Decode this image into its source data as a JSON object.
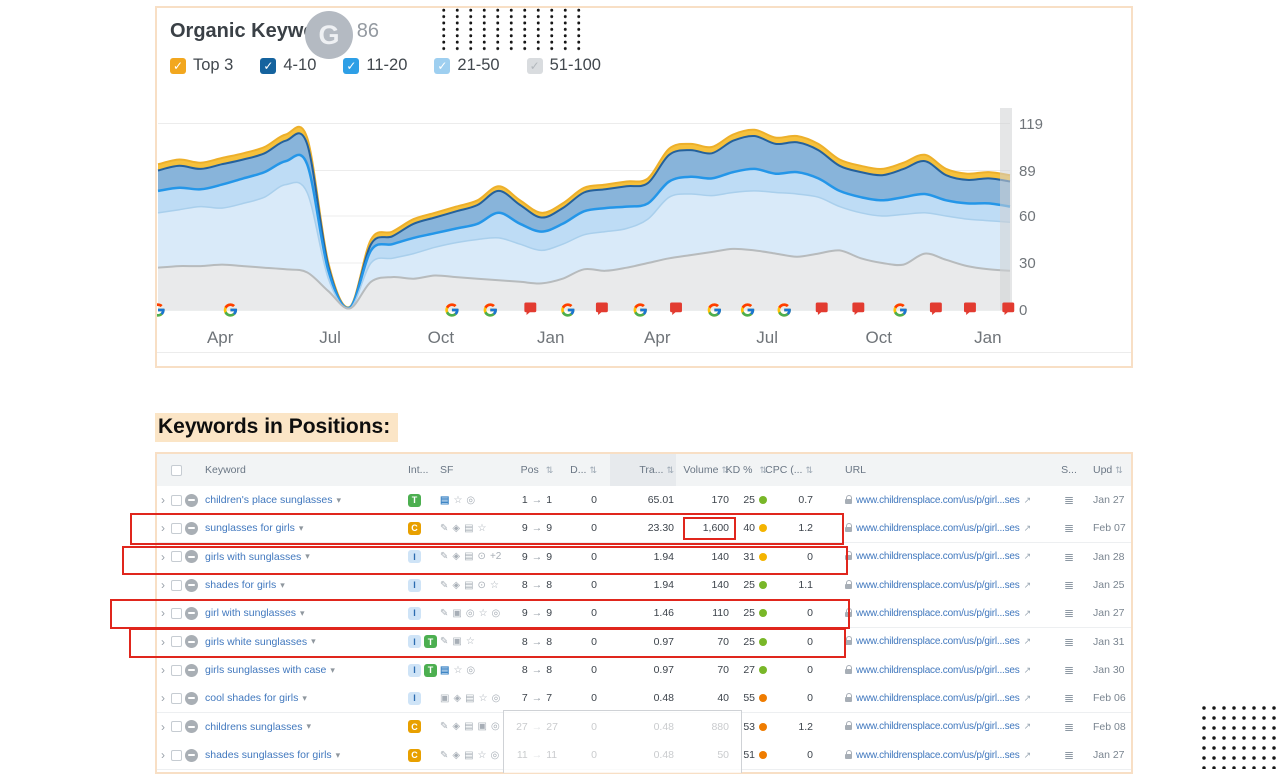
{
  "glyphs": {
    "chevron": "›",
    "dropdown": "▾",
    "pos_arrow": "→",
    "sort": "⇅",
    "serp": "≣",
    "ext": "↗",
    "check": "✓",
    "refresh_g": "G"
  },
  "colors": {
    "panel_border": "#f8dfc5",
    "heading_highlight": "#fbe5c6",
    "annotation_red": "#e0261d",
    "kd": {
      "green": "#79b728",
      "amber": "#f4b400",
      "orange": "#ef7c00"
    },
    "intent": {
      "T": {
        "bg": "#4caf50",
        "fg": "#ffffff"
      },
      "C": {
        "bg": "#e8a000",
        "fg": "#ffffff"
      },
      "I": {
        "bg": "#cfe4f7",
        "fg": "#2b6cb0"
      }
    }
  },
  "chart_panel": {
    "title": "Organic Keywords",
    "count": "86",
    "legend": [
      {
        "label": "Top 3",
        "color": "#f2a71f",
        "check": "#ffffff"
      },
      {
        "label": "4-10",
        "color": "#15639e",
        "check": "#ffffff"
      },
      {
        "label": "11-20",
        "color": "#2e9fe6",
        "check": "#ffffff"
      },
      {
        "label": "21-50",
        "color": "#9ecff0",
        "check": "#ffffff"
      },
      {
        "label": "51-100",
        "color": "#d9dcdf",
        "check": "#b2b7bc"
      }
    ]
  },
  "chart_data": {
    "type": "area",
    "stacked": true,
    "title": "Organic Keywords trend",
    "total_keywords": 86,
    "ylim": [
      0,
      119
    ],
    "y_ticks": [
      0,
      30,
      60,
      89,
      119
    ],
    "grid": true,
    "legend_position": "top",
    "x_labels": [
      {
        "label": "Apr",
        "pct": 7.3
      },
      {
        "label": "Jul",
        "pct": 20.2
      },
      {
        "label": "Oct",
        "pct": 33.2
      },
      {
        "label": "Jan",
        "pct": 46.1
      },
      {
        "label": "Apr",
        "pct": 58.6
      },
      {
        "label": "Jul",
        "pct": 71.5
      },
      {
        "label": "Oct",
        "pct": 84.6
      },
      {
        "label": "Jan",
        "pct": 97.4
      }
    ],
    "series_note": "values are the top boundary (cumulative keyword count) of each position band, sampled every 2.5% of the time axis",
    "series": [
      {
        "name": "Top 3",
        "stroke": "#edb02b",
        "fill": "#f6c13c",
        "width": 2,
        "values": [
          93,
          96,
          94,
          97,
          100,
          104,
          112,
          110,
          30,
          2,
          45,
          50,
          58,
          62,
          66,
          70,
          79,
          70,
          62,
          68,
          78,
          80,
          82,
          84,
          103,
          106,
          104,
          112,
          115,
          110,
          111,
          106,
          96,
          92,
          90,
          94,
          99,
          90,
          87,
          88,
          86
        ]
      },
      {
        "name": "4-10",
        "stroke": "#24619c",
        "fill": "#88b4da",
        "width": 2,
        "values": [
          89,
          92,
          90,
          93,
          96,
          100,
          108,
          106,
          28,
          1.5,
          42,
          47,
          55,
          59,
          63,
          67,
          76,
          67,
          59,
          65,
          75,
          77,
          79,
          81,
          99,
          102,
          100,
          108,
          111,
          106,
          107,
          102,
          92,
          88,
          86,
          90,
          95,
          86,
          83,
          84,
          82
        ]
      },
      {
        "name": "11-20",
        "stroke": "#2496e8",
        "fill": "#bedcf5",
        "width": 2.5,
        "values": [
          76,
          78,
          77,
          80,
          84,
          88,
          95,
          93,
          25,
          1.5,
          38,
          42,
          46,
          49,
          52,
          55,
          62,
          55,
          50,
          55,
          63,
          65,
          66,
          68,
          82,
          85,
          84,
          88,
          90,
          87,
          88,
          84,
          76,
          72,
          70,
          72,
          74,
          70,
          68,
          68,
          66
        ]
      },
      {
        "name": "21-50",
        "stroke": "#a9cfec",
        "fill": "#d9eaf9",
        "width": 1.5,
        "values": [
          62,
          64,
          66,
          65,
          68,
          72,
          80,
          75,
          20,
          1,
          30,
          33,
          36,
          40,
          43,
          45,
          46,
          42,
          38,
          42,
          48,
          50,
          52,
          58,
          72,
          74,
          73,
          75,
          76,
          75,
          74,
          72,
          66,
          62,
          60,
          61,
          62,
          60,
          58,
          57,
          56
        ]
      },
      {
        "name": "51-100",
        "stroke": "#b7bbbd",
        "fill": "#e9eaeb",
        "width": 2,
        "values": [
          27,
          28,
          28,
          29,
          28,
          27,
          26,
          24,
          12,
          1,
          18,
          21,
          20,
          22,
          21,
          20,
          19,
          18,
          17,
          20,
          26,
          25,
          27,
          30,
          33,
          35,
          37,
          39,
          38,
          36,
          34,
          36,
          38,
          33,
          30,
          29,
          36,
          32,
          28,
          26,
          25
        ]
      }
    ],
    "markers": [
      {
        "pct": 0,
        "type": "google-update"
      },
      {
        "pct": 8.5,
        "type": "google-update"
      },
      {
        "pct": 34.5,
        "type": "google-update"
      },
      {
        "pct": 39,
        "type": "google-update"
      },
      {
        "pct": 43.7,
        "type": "note"
      },
      {
        "pct": 48.1,
        "type": "google-update"
      },
      {
        "pct": 52.1,
        "type": "note"
      },
      {
        "pct": 56.6,
        "type": "google-update"
      },
      {
        "pct": 60.8,
        "type": "note"
      },
      {
        "pct": 65.3,
        "type": "google-update"
      },
      {
        "pct": 69.2,
        "type": "google-update"
      },
      {
        "pct": 73.5,
        "type": "google-update"
      },
      {
        "pct": 77.9,
        "type": "note"
      },
      {
        "pct": 82.2,
        "type": "note"
      },
      {
        "pct": 87.1,
        "type": "google-update"
      },
      {
        "pct": 91.3,
        "type": "note"
      },
      {
        "pct": 95.3,
        "type": "note"
      },
      {
        "pct": 99.8,
        "type": "note"
      }
    ]
  },
  "table_section": {
    "heading": "Keywords in Positions:",
    "columns": {
      "keyword": "Keyword",
      "intent": "Int...",
      "sf": "SF",
      "pos": "Pos",
      "diff": "D...",
      "traffic": "Tra...",
      "volume": "Volume",
      "kd": "KD %",
      "cpc": "CPC (...",
      "url": "URL",
      "serp": "S...",
      "upd": "Upd"
    },
    "rows": [
      {
        "keyword": "children's place sunglasses",
        "intents": [
          "T"
        ],
        "sf": [
          {
            "glyph": "▤",
            "hl": true
          },
          {
            "glyph": "☆"
          },
          {
            "glyph": "◎"
          }
        ],
        "pos_from": "1",
        "pos_to": "1",
        "diff": "0",
        "traffic": "65.01",
        "volume": "170",
        "kd": "25",
        "kd_level": "green",
        "cpc": "0.7",
        "url": "www.childrensplace.com/us/p/girl...ses",
        "upd": "Jan 27"
      },
      {
        "keyword": "sunglasses for girls",
        "intents": [
          "C"
        ],
        "sf": [
          {
            "glyph": "✎"
          },
          {
            "glyph": "◈"
          },
          {
            "glyph": "▤"
          },
          {
            "glyph": "☆"
          }
        ],
        "pos_from": "9",
        "pos_to": "9",
        "diff": "0",
        "traffic": "23.30",
        "volume": "1,600",
        "kd": "40",
        "kd_level": "amber",
        "cpc": "1.2",
        "url": "www.childrensplace.com/us/p/girl...ses",
        "upd": "Feb 07"
      },
      {
        "keyword": "girls with sunglasses",
        "intents": [
          "I"
        ],
        "sf": [
          {
            "glyph": "✎"
          },
          {
            "glyph": "◈"
          },
          {
            "glyph": "▤"
          },
          {
            "glyph": "⊙"
          },
          {
            "glyph": "+2"
          }
        ],
        "pos_from": "9",
        "pos_to": "9",
        "diff": "0",
        "traffic": "1.94",
        "volume": "140",
        "kd": "31",
        "kd_level": "amber",
        "cpc": "0",
        "url": "www.childrensplace.com/us/p/girl...ses",
        "upd": "Jan 28"
      },
      {
        "keyword": "shades for girls",
        "intents": [
          "I"
        ],
        "sf": [
          {
            "glyph": "✎"
          },
          {
            "glyph": "◈"
          },
          {
            "glyph": "▤"
          },
          {
            "glyph": "⊙"
          },
          {
            "glyph": "☆"
          }
        ],
        "pos_from": "8",
        "pos_to": "8",
        "diff": "0",
        "traffic": "1.94",
        "volume": "140",
        "kd": "25",
        "kd_level": "green",
        "cpc": "1.1",
        "url": "www.childrensplace.com/us/p/girl...ses",
        "upd": "Jan 25"
      },
      {
        "keyword": "girl with sunglasses",
        "intents": [
          "I"
        ],
        "sf": [
          {
            "glyph": "✎"
          },
          {
            "glyph": "▣"
          },
          {
            "glyph": "◎"
          },
          {
            "glyph": "☆"
          },
          {
            "glyph": "◎"
          }
        ],
        "pos_from": "9",
        "pos_to": "9",
        "diff": "0",
        "traffic": "1.46",
        "volume": "110",
        "kd": "25",
        "kd_level": "green",
        "cpc": "0",
        "url": "www.childrensplace.com/us/p/girl...ses",
        "upd": "Jan 27"
      },
      {
        "keyword": "girls white sunglasses",
        "intents": [
          "I",
          "T"
        ],
        "sf": [
          {
            "glyph": "✎"
          },
          {
            "glyph": "▣"
          },
          {
            "glyph": "☆"
          }
        ],
        "pos_from": "8",
        "pos_to": "8",
        "diff": "0",
        "traffic": "0.97",
        "volume": "70",
        "kd": "25",
        "kd_level": "green",
        "cpc": "0",
        "url": "www.childrensplace.com/us/p/girl...ses",
        "upd": "Jan 31"
      },
      {
        "keyword": "girls sunglasses with case",
        "intents": [
          "I",
          "T"
        ],
        "sf": [
          {
            "glyph": "▤",
            "hl": true
          },
          {
            "glyph": "☆"
          },
          {
            "glyph": "◎"
          }
        ],
        "pos_from": "8",
        "pos_to": "8",
        "diff": "0",
        "traffic": "0.97",
        "volume": "70",
        "kd": "27",
        "kd_level": "green",
        "cpc": "0",
        "url": "www.childrensplace.com/us/p/girl...ses",
        "upd": "Jan 30"
      },
      {
        "keyword": "cool shades for girls",
        "intents": [
          "I"
        ],
        "sf": [
          {
            "glyph": "▣"
          },
          {
            "glyph": "◈"
          },
          {
            "glyph": "▤"
          },
          {
            "glyph": "☆"
          },
          {
            "glyph": "◎"
          }
        ],
        "pos_from": "7",
        "pos_to": "7",
        "diff": "0",
        "traffic": "0.48",
        "volume": "40",
        "kd": "55",
        "kd_level": "orange",
        "cpc": "0",
        "url": "www.childrensplace.com/us/p/girl...ses",
        "upd": "Feb 06"
      },
      {
        "keyword": "childrens sunglasses",
        "intents": [
          "C"
        ],
        "sf": [
          {
            "glyph": "✎"
          },
          {
            "glyph": "◈"
          },
          {
            "glyph": "▤"
          },
          {
            "glyph": "▣"
          },
          {
            "glyph": "◎"
          }
        ],
        "pos_from": "27",
        "pos_to": "27",
        "diff": "0",
        "traffic": "0.48",
        "volume": "880",
        "kd": "53",
        "kd_level": "orange",
        "cpc": "1.2",
        "url": "www.childrensplace.com/us/p/girl...ses",
        "upd": "Feb 08"
      },
      {
        "keyword": "shades sunglasses for girls",
        "intents": [
          "C"
        ],
        "sf": [
          {
            "glyph": "✎"
          },
          {
            "glyph": "◈"
          },
          {
            "glyph": "▤"
          },
          {
            "glyph": "☆"
          },
          {
            "glyph": "◎"
          }
        ],
        "pos_from": "11",
        "pos_to": "11",
        "diff": "0",
        "traffic": "0.48",
        "volume": "50",
        "kd": "51",
        "kd_level": "orange",
        "cpc": "0",
        "url": "www.childrensplace.com/us/p/girl...ses",
        "upd": "Jan 27"
      }
    ]
  }
}
